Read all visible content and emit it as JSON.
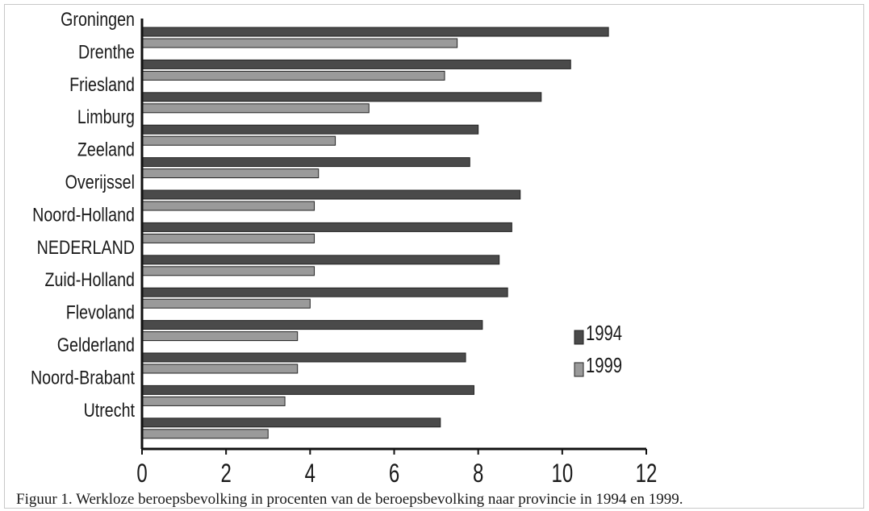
{
  "chart_data": {
    "type": "bar",
    "orientation": "horizontal",
    "categories": [
      "Groningen",
      "Drenthe",
      "Friesland",
      "Limburg",
      "Zeeland",
      "Overijssel",
      "Noord-Holland",
      "NEDERLAND",
      "Zuid-Holland",
      "Flevoland",
      "Gelderland",
      "Noord-Brabant",
      "Utrecht"
    ],
    "series": [
      {
        "name": "1994",
        "color": "#4a4a4a",
        "values": [
          11.1,
          10.2,
          9.5,
          8.0,
          7.8,
          9.0,
          8.8,
          8.5,
          8.7,
          8.1,
          7.7,
          7.9,
          7.1
        ]
      },
      {
        "name": "1999",
        "color": "#9a9a9a",
        "values": [
          7.5,
          7.2,
          5.4,
          4.6,
          4.2,
          4.1,
          4.1,
          4.1,
          4.0,
          3.7,
          3.7,
          3.4,
          3.0
        ]
      }
    ],
    "xlim": [
      0,
      12
    ],
    "xticks": [
      0,
      2,
      4,
      6,
      8,
      10,
      12
    ],
    "grid": false,
    "legend": "right"
  },
  "caption": "Figuur 1. Werkloze beroepsbevolking in procenten van de beroepsbevolking naar provincie in 1994 en 1999."
}
